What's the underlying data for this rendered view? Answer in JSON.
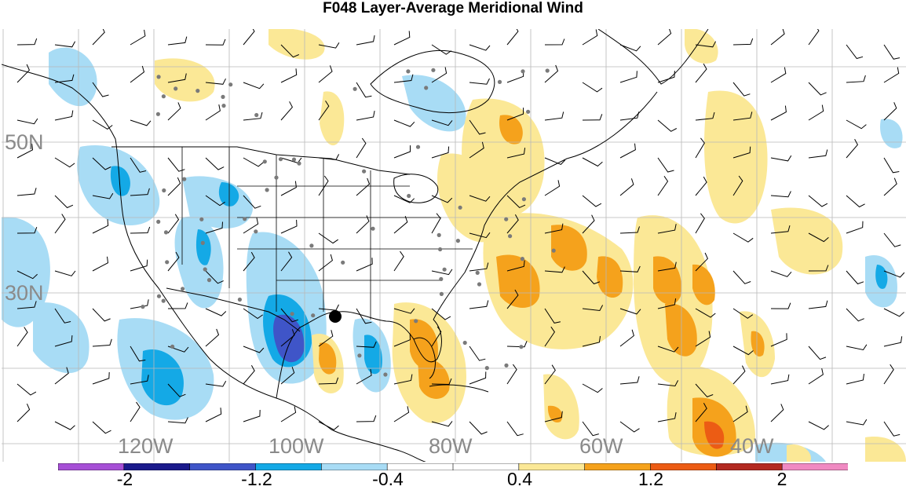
{
  "title": "F048 Layer-Average Meridional Wind",
  "lat_labels": [
    "50N",
    "30N"
  ],
  "lon_labels": [
    "120W",
    "100W",
    "80W",
    "60W",
    "40W"
  ],
  "colorbar": {
    "colors": [
      "#a64fd6",
      "#1b1a8c",
      "#3f55c8",
      "#14a9e6",
      "#a8dcf5",
      "#ffffff",
      "#ffffff",
      "#fbe896",
      "#f5a21c",
      "#ec5c14",
      "#b32a21",
      "#f08ac2"
    ],
    "labels": [
      "-2",
      "-1.2",
      "-0.4",
      "0.4",
      "1.2",
      "2"
    ]
  },
  "color_levels": {
    "neg_light": "#a8dcf5",
    "neg_mid": "#14a9e6",
    "neg_dark": "#3f55c8",
    "pos_light": "#fbe896",
    "pos_mid": "#f5a21c",
    "pos_dark": "#ec5c14"
  },
  "marker": "storm-center-dot"
}
